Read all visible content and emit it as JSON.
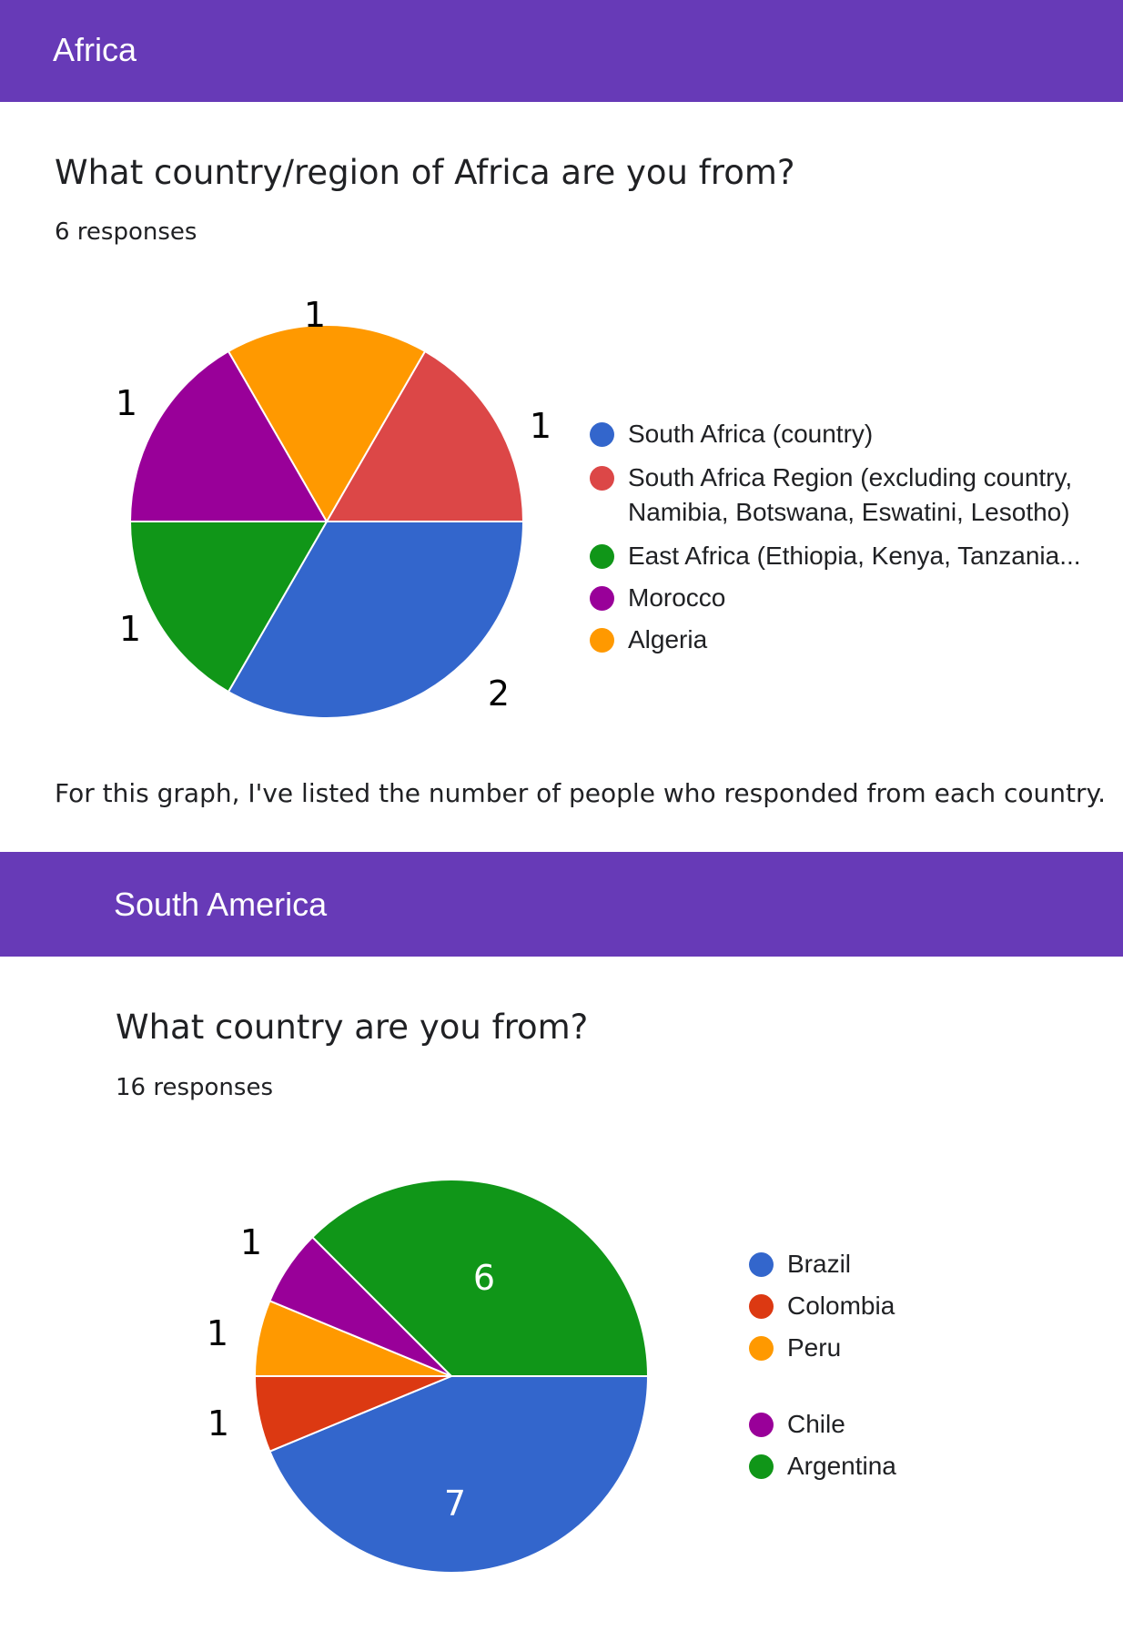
{
  "sections": [
    {
      "header": "Africa",
      "question": "What country/region of Africa are you from?",
      "responses": "6 responses",
      "note": "For this graph, I've listed the number of people who responded from each country."
    },
    {
      "header": "South America",
      "question": "What country are you from?",
      "responses": "16 responses"
    }
  ],
  "chart_data": [
    {
      "type": "pie",
      "categories": [
        "South Africa (country)",
        "South Africa Region (excluding country, Namibia, Botswana, Eswatini, Lesotho)",
        "East Africa (Ethiopia, Kenya, Tanzania...",
        "Morocco",
        "Algeria"
      ],
      "values": [
        2,
        1,
        1,
        1,
        1
      ],
      "colors": [
        "#3366cc",
        "#dc4747",
        "#109618",
        "#990099",
        "#ff9900"
      ],
      "value_labels": [
        "2",
        "1",
        "1",
        "1",
        "1"
      ],
      "legend_position": "right"
    },
    {
      "type": "pie",
      "categories": [
        "Brazil",
        "Colombia",
        "Peru",
        "Chile",
        "Argentina"
      ],
      "values": [
        7,
        1,
        1,
        1,
        6
      ],
      "colors": [
        "#3366cc",
        "#dc3912",
        "#ff9900",
        "#990099",
        "#109618"
      ],
      "value_labels": [
        "7",
        "1",
        "1",
        "1",
        "6"
      ],
      "legend_position": "right"
    }
  ]
}
